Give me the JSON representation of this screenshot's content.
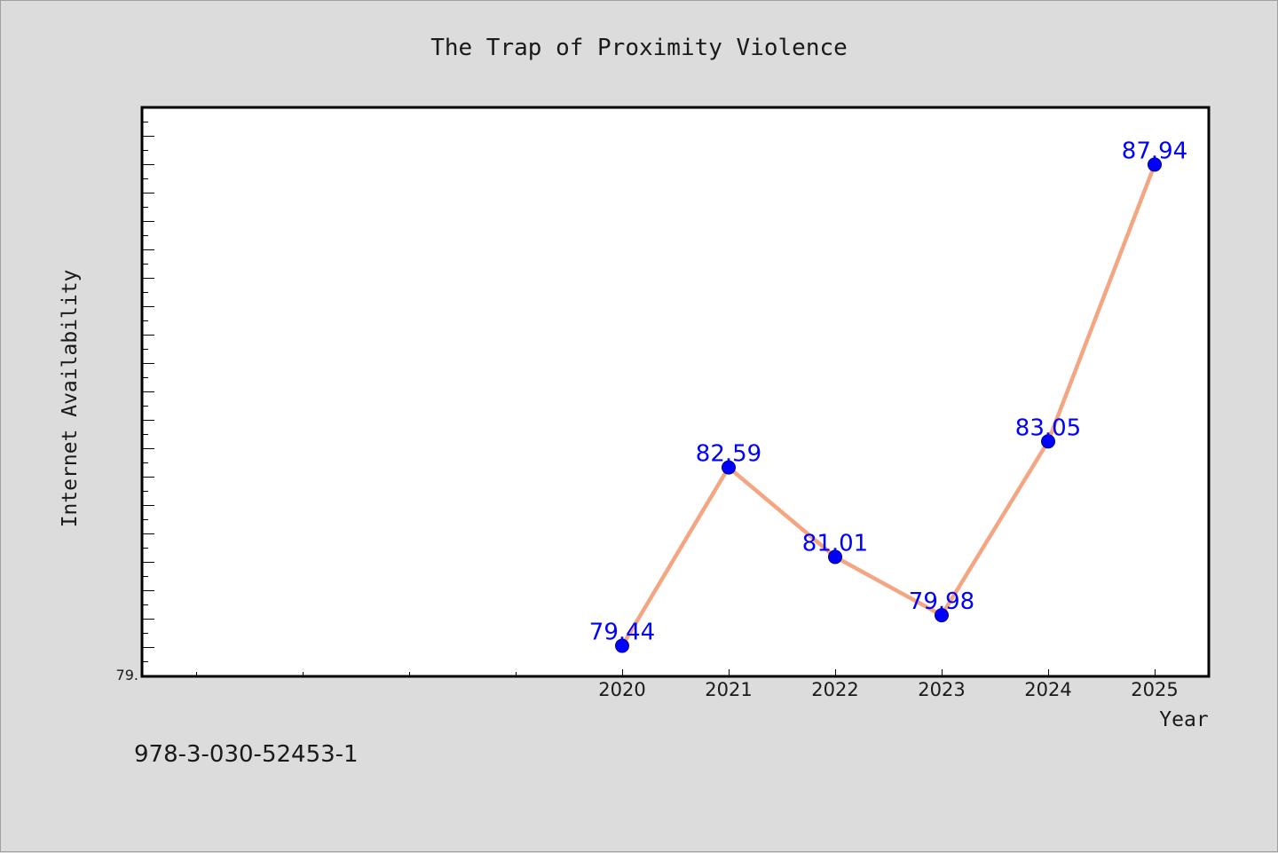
{
  "chart_data": {
    "type": "line",
    "title": "The Trap of Proximity Violence",
    "xlabel": "Year",
    "ylabel": "Internet Availability",
    "categories": [
      "2020",
      "2021",
      "2022",
      "2023",
      "2024",
      "2025"
    ],
    "series": [
      {
        "values": [
          79.44,
          82.59,
          81.01,
          79.98,
          83.05,
          87.94
        ],
        "data_labels": [
          "79.44",
          "82.59",
          "81.01",
          "79.98",
          "83.05",
          "87.94"
        ]
      }
    ],
    "y_tick_labels": [
      "79."
    ],
    "ylim": [
      78.9,
      88.95
    ],
    "grid": false,
    "legend": "none",
    "colors": {
      "line": "#f4a582",
      "marker": "#0000ff",
      "data_label": "#0000ff",
      "plot_background": "#ffffff",
      "figure_background": "#dcdcdc"
    }
  },
  "footer": {
    "isbn": "978-3-030-52453-1"
  }
}
